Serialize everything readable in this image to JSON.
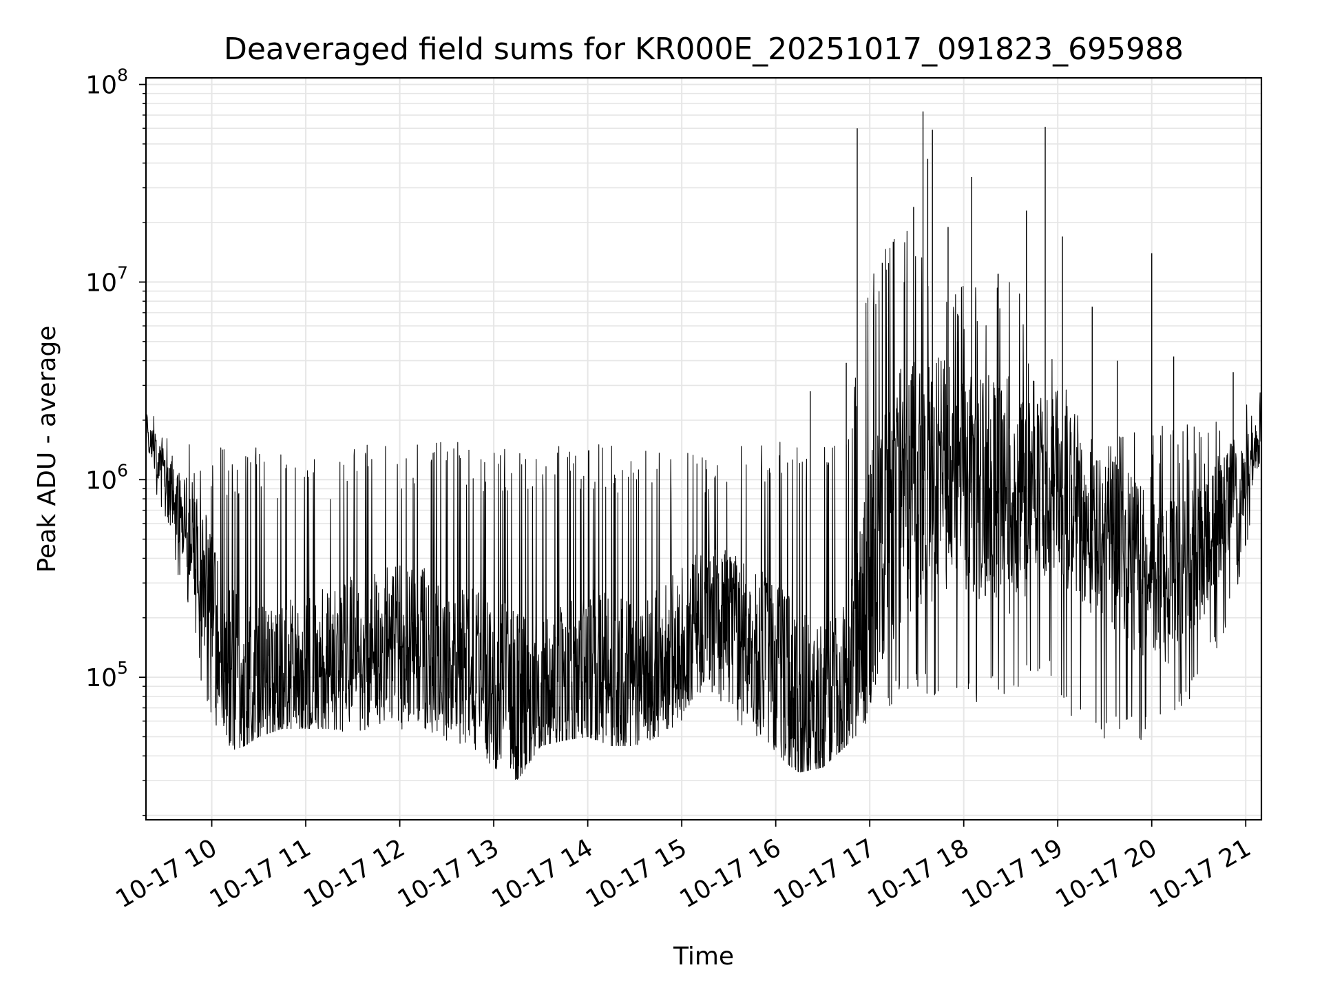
{
  "chart_data": {
    "type": "line",
    "title": "Deaveraged field sums for KR000E_20251017_091823_695988",
    "xlabel": "Time",
    "ylabel": "Peak ADU - average",
    "x_scale": "time",
    "y_scale": "log",
    "xlim": [
      "2025-10-17 09:18",
      "2025-10-17 21:10"
    ],
    "ylim": [
      19000,
      108000000
    ],
    "x_ticks": [
      {
        "value": "2025-10-17 10:00",
        "label": "10-17 10"
      },
      {
        "value": "2025-10-17 11:00",
        "label": "10-17 11"
      },
      {
        "value": "2025-10-17 12:00",
        "label": "10-17 12"
      },
      {
        "value": "2025-10-17 13:00",
        "label": "10-17 13"
      },
      {
        "value": "2025-10-17 14:00",
        "label": "10-17 14"
      },
      {
        "value": "2025-10-17 15:00",
        "label": "10-17 15"
      },
      {
        "value": "2025-10-17 16:00",
        "label": "10-17 16"
      },
      {
        "value": "2025-10-17 17:00",
        "label": "10-17 17"
      },
      {
        "value": "2025-10-17 18:00",
        "label": "10-17 18"
      },
      {
        "value": "2025-10-17 19:00",
        "label": "10-17 19"
      },
      {
        "value": "2025-10-17 20:00",
        "label": "10-17 20"
      },
      {
        "value": "2025-10-17 21:00",
        "label": "10-17 21"
      }
    ],
    "y_ticks": [
      {
        "value": 100000,
        "base": "10",
        "exp": "5"
      },
      {
        "value": 1000000,
        "base": "10",
        "exp": "6"
      },
      {
        "value": 10000000,
        "base": "10",
        "exp": "7"
      },
      {
        "value": 100000000,
        "base": "10",
        "exp": "8"
      }
    ],
    "grid": "major and minor",
    "legend": "none",
    "colors": {
      "line": "#000000",
      "grid": "#e6e6e6",
      "axes": "#000000"
    },
    "series": [
      {
        "x": [
          "2025-10-17 09:18",
          "2025-10-17 09:27",
          "2025-10-17 09:36",
          "2025-10-17 09:45",
          "2025-10-17 09:54",
          "2025-10-17 10:03",
          "2025-10-17 10:12",
          "2025-10-17 10:21",
          "2025-10-17 10:30",
          "2025-10-17 10:45",
          "2025-10-17 11:00",
          "2025-10-17 11:15",
          "2025-10-17 11:30",
          "2025-10-17 11:45",
          "2025-10-17 12:00",
          "2025-10-17 12:15",
          "2025-10-17 12:30",
          "2025-10-17 12:45",
          "2025-10-17 13:00",
          "2025-10-17 13:15",
          "2025-10-17 13:30",
          "2025-10-17 13:45",
          "2025-10-17 14:00",
          "2025-10-17 14:15",
          "2025-10-17 14:30",
          "2025-10-17 14:45",
          "2025-10-17 15:00",
          "2025-10-17 15:15",
          "2025-10-17 15:30",
          "2025-10-17 15:45",
          "2025-10-17 16:00",
          "2025-10-17 16:15",
          "2025-10-17 16:30",
          "2025-10-17 16:45",
          "2025-10-17 17:00",
          "2025-10-17 17:15",
          "2025-10-17 17:30",
          "2025-10-17 17:45",
          "2025-10-17 18:00",
          "2025-10-17 18:15",
          "2025-10-17 18:30",
          "2025-10-17 18:45",
          "2025-10-17 19:00",
          "2025-10-17 19:15",
          "2025-10-17 19:30",
          "2025-10-17 19:45",
          "2025-10-17 20:00",
          "2025-10-17 20:15",
          "2025-10-17 20:30",
          "2025-10-17 20:45",
          "2025-10-17 21:00",
          "2025-10-17 21:10"
        ],
        "center": [
          1800000,
          1200000,
          800000,
          600000,
          350000,
          180000,
          110000,
          90000,
          90000,
          100000,
          110000,
          120000,
          130000,
          140000,
          150000,
          140000,
          120000,
          110000,
          90000,
          80000,
          80000,
          90000,
          110000,
          100000,
          90000,
          110000,
          150000,
          200000,
          180000,
          150000,
          110000,
          80000,
          70000,
          90000,
          300000,
          700000,
          1000000,
          1000000,
          1000000,
          900000,
          800000,
          900000,
          1000000,
          600000,
          500000,
          400000,
          300000,
          300000,
          400000,
          700000,
          1100000,
          1500000
        ],
        "low": [
          1300000,
          700000,
          400000,
          200000,
          80000,
          50000,
          42000,
          45000,
          50000,
          55000,
          55000,
          55000,
          52000,
          55000,
          55000,
          50000,
          48000,
          45000,
          35000,
          30000,
          45000,
          48000,
          50000,
          45000,
          45000,
          50000,
          60000,
          70000,
          60000,
          50000,
          40000,
          33000,
          35000,
          45000,
          60000,
          70000,
          80000,
          80000,
          80000,
          70000,
          80000,
          100000,
          80000,
          50000,
          45000,
          45000,
          50000,
          60000,
          80000,
          150000,
          400000,
          1100000
        ],
        "high": [
          2600000,
          2000000,
          1600000,
          1600000,
          1500000,
          1500000,
          1400000,
          1500000,
          1500000,
          1400000,
          1500000,
          1400000,
          1500000,
          1500000,
          1500000,
          1550000,
          1600000,
          1600000,
          1500000,
          1500000,
          1500000,
          1500000,
          1600000,
          1500000,
          1500000,
          1500000,
          1500000,
          1500000,
          1500000,
          1500000,
          1600000,
          1600000,
          1600000,
          1800000,
          12000000,
          20000000,
          18000000,
          15000000,
          10000000,
          10000000,
          15000000,
          5000000,
          4000000,
          2000000,
          1800000,
          1800000,
          1800000,
          2000000,
          2000000,
          2000000,
          2500000,
          2900000
        ],
        "spikes": [
          {
            "x": "2025-10-17 16:22",
            "y": 2800000
          },
          {
            "x": "2025-10-17 16:45",
            "y": 3900000
          },
          {
            "x": "2025-10-17 16:52",
            "y": 60000000
          },
          {
            "x": "2025-10-17 17:08",
            "y": 12500000
          },
          {
            "x": "2025-10-17 17:15",
            "y": 16000000
          },
          {
            "x": "2025-10-17 17:22",
            "y": 10000000
          },
          {
            "x": "2025-10-17 17:28",
            "y": 24000000
          },
          {
            "x": "2025-10-17 17:34",
            "y": 73000000
          },
          {
            "x": "2025-10-17 17:37",
            "y": 42000000
          },
          {
            "x": "2025-10-17 17:40",
            "y": 59000000
          },
          {
            "x": "2025-10-17 17:50",
            "y": 19000000
          },
          {
            "x": "2025-10-17 17:56",
            "y": 5000000
          },
          {
            "x": "2025-10-17 18:05",
            "y": 34000000
          },
          {
            "x": "2025-10-17 18:22",
            "y": 11000000
          },
          {
            "x": "2025-10-17 18:40",
            "y": 23000000
          },
          {
            "x": "2025-10-17 18:52",
            "y": 61000000
          },
          {
            "x": "2025-10-17 19:03",
            "y": 17000000
          },
          {
            "x": "2025-10-17 19:22",
            "y": 7500000
          },
          {
            "x": "2025-10-17 19:38",
            "y": 4000000
          },
          {
            "x": "2025-10-17 20:00",
            "y": 14000000
          },
          {
            "x": "2025-10-17 20:14",
            "y": 4200000
          },
          {
            "x": "2025-10-17 20:52",
            "y": 3500000
          }
        ]
      }
    ]
  }
}
